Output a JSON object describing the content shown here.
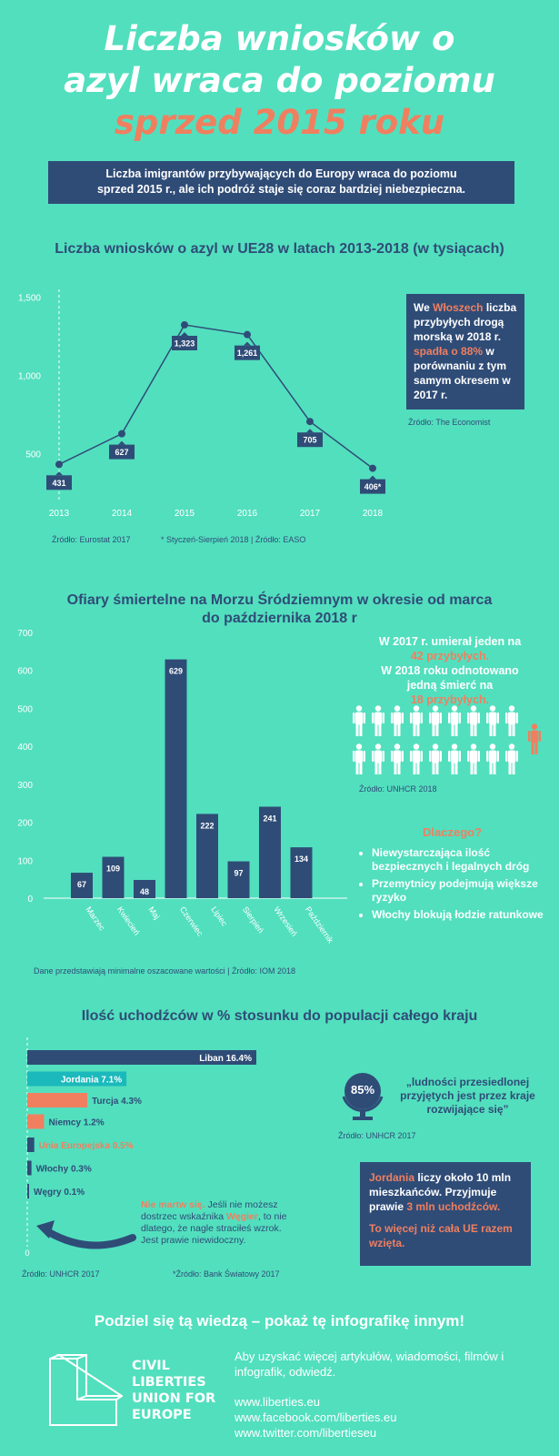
{
  "title": {
    "line1": "Liczba wniosków o",
    "line2": "azyl wraca do poziomu",
    "line3": "sprzed 2015 roku"
  },
  "intro": {
    "line1": "Liczba imigrantów przybywających do Europy wraca do poziomu",
    "line2": "sprzed 2015 r., ale ich podróż staje się coraz bardziej niebezpieczna."
  },
  "colors": {
    "background": "#52dfbe",
    "navy": "#2f4c77",
    "orange": "#f07f5f",
    "teal": "#1bb9bb",
    "white": "#ffffff"
  },
  "chart1_title": "Liczba wniosków o azyl w UE28 w latach 2013-2018 (w tysiącach)",
  "chart1_note": {
    "t1": "We ",
    "t2": "Włoszech",
    "t3": "liczba przybyłych drogą morską w 2018 r. ",
    "t4": "spadła o 88%",
    "t5": " w porównaniu z tym samym okresem w 2017 r.",
    "source": "Źródło: The Economist"
  },
  "chart1_source1": "Źródło: Eurostat 2017",
  "chart1_source2": "* Styczeń-Sierpień 2018 | Źródło: EASO",
  "chart2_title": {
    "line1": "Ofiary śmiertelne na Morzu Śródziemnym w okresie od marca",
    "line2": "do października 2018 r"
  },
  "chart2_note": {
    "l1": "W 2017 r. umierał jeden na",
    "l2": "42 przybyłych.",
    "l3": "W 2018 roku odnotowano",
    "l4": "jedną śmierć na",
    "l5": "18 przybyłych.",
    "source": "Źródło: UNHCR 2018"
  },
  "icon_names": [
    "person-icon",
    "person-highlight-icon",
    "globe-icon",
    "curved-arrow-icon",
    "liberties-logo-icon"
  ],
  "why": {
    "heading": "Dlaczego?",
    "items": [
      "Niewystarczająca ilość bezpiecznych i legalnych dróg",
      "Przemytnicy podejmują większe ryzyko",
      "Włochy blokują łodzie ratunkowe"
    ]
  },
  "chart2_source": "Dane przedstawiają minimalne oszacowane wartości | Źródło: IOM 2018",
  "chart3_title": "Ilość uchodźców w % stosunku do populacji całego kraju",
  "chart3_labels": [
    "Liban 16.4%",
    "Jordania 7.1%",
    "Turcja 4.3%",
    "Niemcy 1.2%",
    "Unia Europejska 0.5%",
    "Włochy 0.3%",
    "Węgry 0.1%"
  ],
  "chart3_zero": "0",
  "quote": {
    "percent": "85%",
    "text": "„ludności przesiedlonej przyjętych jest przez kraje rozwijające się”",
    "source": "Źródło: UNHCR 2017"
  },
  "jordan": {
    "t1": "Jordania",
    "t2": " liczy około 10 mln mieszkańców. Przyjmuje prawie ",
    "t3": "3 mln uchodźców.",
    "t4": "To więcej niż cała UE razem wzięta."
  },
  "hungary_note": {
    "t1": "Nie martw się.",
    "t2": " Jeśli nie możesz dostrzec wskaźnika ",
    "t3": "Węgier",
    "t4": ", to nie dlatego, że nagle straciłeś wzrok. Jest prawie niewidoczny."
  },
  "chart3_source1": "Źródło: UNHCR 2017",
  "chart3_source2": "*Źródło:  Bank Światowy 2017",
  "footer": {
    "headline": "Podziel się tą wiedzą – pokaż tę infografikę innym!",
    "logo_lines": [
      "CIVIL",
      "LIBERTIES",
      "UNION FOR",
      "EUROPE"
    ],
    "text": "Aby uzyskać więcej artykułów, wiadomości, filmów i infografik, odwiedź.",
    "links": [
      "www.liberties.eu",
      "www.facebook.com/liberties.eu",
      "www.twitter.com/libertieseu"
    ]
  },
  "chart_data": [
    {
      "type": "line",
      "title": "Liczba wniosków o azyl w UE28 w latach 2013-2018 (w tysiącach)",
      "x": [
        "2013",
        "2014",
        "2015",
        "2016",
        "2017",
        "2018"
      ],
      "series": [
        {
          "values": [
            431,
            627,
            1323,
            1261,
            705,
            406
          ]
        }
      ],
      "point_labels": [
        "431",
        "627",
        "1,323",
        "1,261",
        "705",
        "406*"
      ],
      "yticks": [
        "500",
        "1,000",
        "1,500"
      ],
      "ylim": [
        200,
        1550
      ],
      "grid": false
    },
    {
      "type": "bar",
      "title": "Ofiary śmiertelne na Morzu Śródziemnym w okresie od marca do października 2018 r",
      "categories": [
        "Marzec",
        "Kwiecień",
        "Maj",
        "Czerwiec",
        "Lipiec",
        "Sierpień",
        "Wrzesień",
        "Październik"
      ],
      "values": [
        67,
        109,
        48,
        629,
        222,
        97,
        241,
        134
      ],
      "yticks": [
        "0",
        "100",
        "200",
        "300",
        "400",
        "500",
        "600",
        "700"
      ],
      "ylim": [
        0,
        700
      ],
      "grid": false
    },
    {
      "type": "bar",
      "orientation": "horizontal",
      "title": "Ilość uchodźców w % stosunku do populacji całego kraju",
      "categories": [
        "Liban",
        "Jordania",
        "Turcja",
        "Niemcy",
        "Unia Europejska",
        "Włochy",
        "Węgry"
      ],
      "values": [
        16.4,
        7.1,
        4.3,
        1.2,
        0.5,
        0.3,
        0.1
      ],
      "unit": "%",
      "colors": [
        "#2f4c77",
        "#1bb9bb",
        "#f07f5f",
        "#f07f5f",
        "#2f4c77",
        "#2f4c77",
        "#2f4c77"
      ]
    }
  ]
}
